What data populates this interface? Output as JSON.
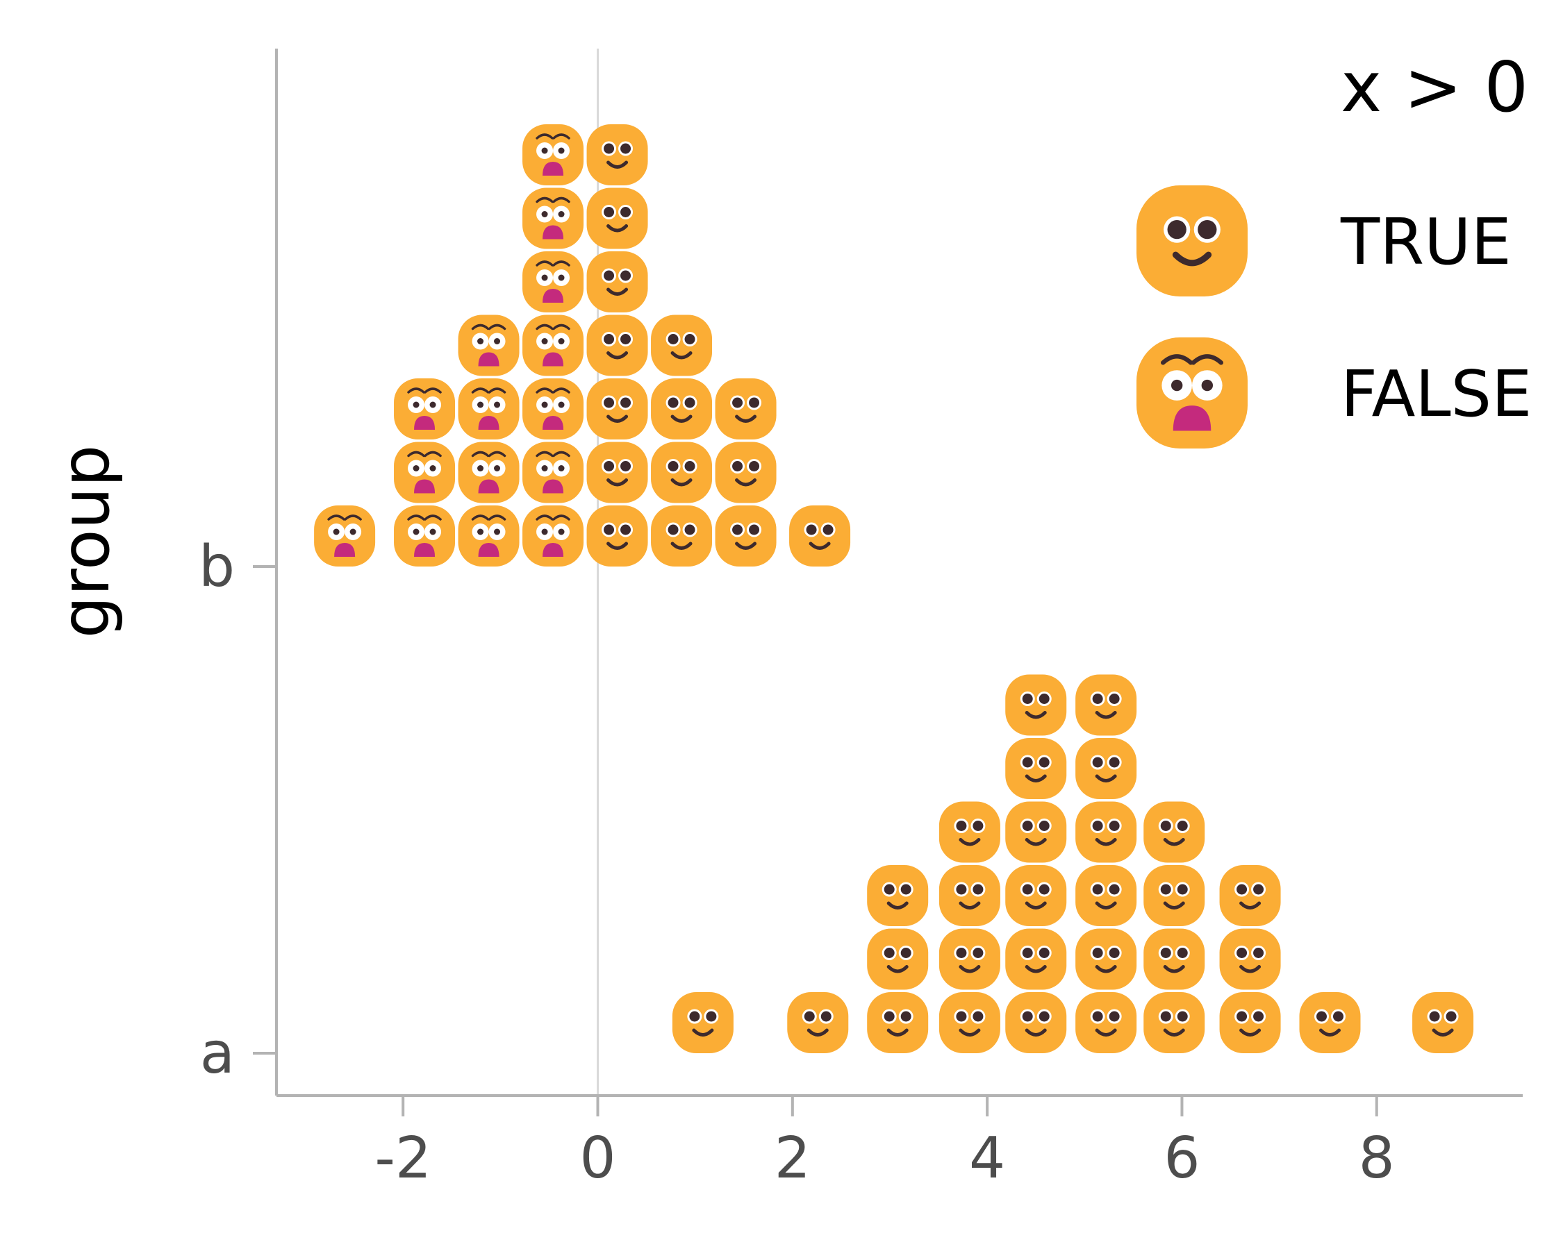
{
  "chart_data": {
    "type": "scatter",
    "subtype": "dotplot",
    "title": "",
    "xlabel": "",
    "ylabel": "group",
    "xlim": [
      -3.3,
      9.5
    ],
    "x_ticks": [
      -2,
      0,
      2,
      4,
      6,
      8
    ],
    "x_tick_labels": [
      "-2",
      "0",
      "2",
      "4",
      "6",
      "8"
    ],
    "categories": [
      "a",
      "b"
    ],
    "reference_line_x": 0,
    "grid": false,
    "legend": {
      "title": "x > 0",
      "position": "top-right",
      "entries": [
        {
          "label": "TRUE",
          "icon": "smiling-face-icon"
        },
        {
          "label": "FALSE",
          "icon": "flushed-face-icon"
        }
      ]
    },
    "colors": {
      "face": "#fbad35",
      "eye": "#3d2a2d",
      "mouth_open": "#c42a7d",
      "axis": "#b3b3b3",
      "zero_line": "#d9d9d9"
    },
    "series": [
      {
        "group": "b",
        "bins": [
          {
            "x": -2.6,
            "count": 1,
            "positive": false
          },
          {
            "x": -1.78,
            "count": 3,
            "positive": false
          },
          {
            "x": -1.12,
            "count": 4,
            "positive": false
          },
          {
            "x": -0.46,
            "count": 7,
            "positive": false
          },
          {
            "x": 0.2,
            "count": 7,
            "positive": true
          },
          {
            "x": 0.86,
            "count": 4,
            "positive": true
          },
          {
            "x": 1.52,
            "count": 3,
            "positive": true
          },
          {
            "x": 2.28,
            "count": 1,
            "positive": true
          }
        ]
      },
      {
        "group": "a",
        "bins": [
          {
            "x": 1.08,
            "count": 1,
            "positive": true
          },
          {
            "x": 2.26,
            "count": 1,
            "positive": true
          },
          {
            "x": 3.08,
            "count": 3,
            "positive": true
          },
          {
            "x": 3.82,
            "count": 4,
            "positive": true
          },
          {
            "x": 4.5,
            "count": 6,
            "positive": true
          },
          {
            "x": 5.22,
            "count": 6,
            "positive": true
          },
          {
            "x": 5.92,
            "count": 4,
            "positive": true
          },
          {
            "x": 6.7,
            "count": 3,
            "positive": true
          },
          {
            "x": 7.52,
            "count": 1,
            "positive": true
          },
          {
            "x": 8.68,
            "count": 1,
            "positive": true
          }
        ]
      }
    ]
  }
}
